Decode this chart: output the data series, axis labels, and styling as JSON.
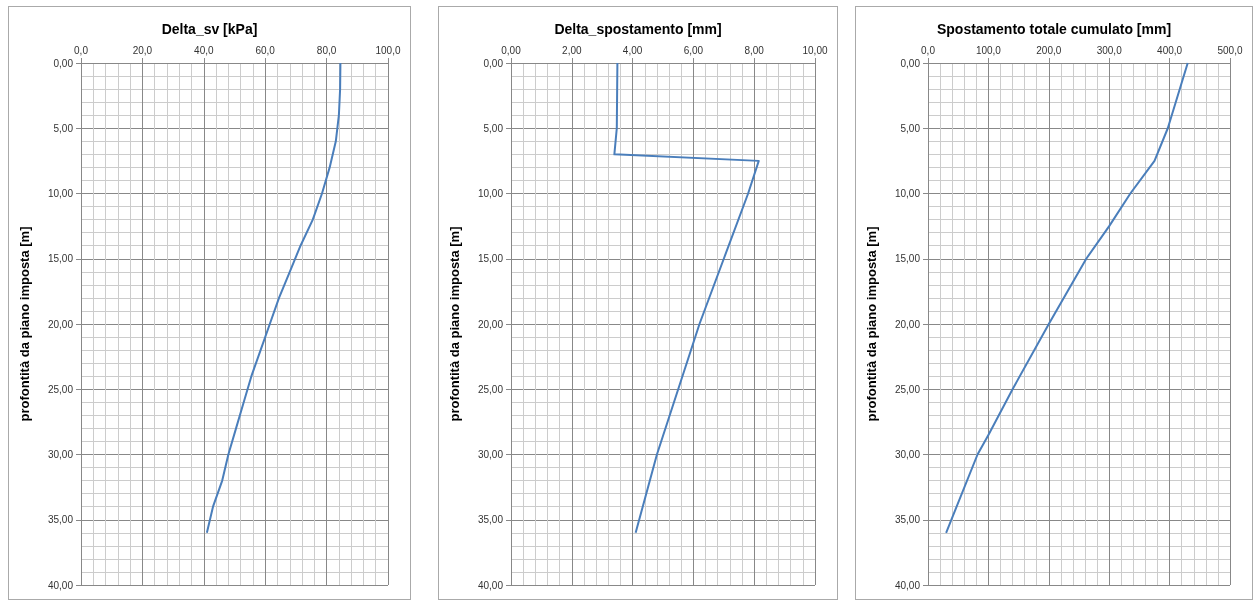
{
  "chart_data": [
    {
      "type": "line",
      "title": "Delta_sv [kPa]",
      "ylabel": "profontità da piano imposta [m]",
      "grid": true,
      "marker": "none",
      "line_style": "solid",
      "xlim": [
        0,
        100
      ],
      "xticks": [
        {
          "value": 0,
          "label": "0,0"
        },
        {
          "value": 20,
          "label": "20,0"
        },
        {
          "value": 40,
          "label": "40,0"
        },
        {
          "value": 60,
          "label": "60,0"
        },
        {
          "value": 80,
          "label": "80,0"
        },
        {
          "value": 100,
          "label": "100,0"
        }
      ],
      "ylim": [
        40,
        0
      ],
      "yticks": [
        {
          "value": 0,
          "label": "0,00"
        },
        {
          "value": 5,
          "label": "5,00"
        },
        {
          "value": 10,
          "label": "10,00"
        },
        {
          "value": 15,
          "label": "15,00"
        },
        {
          "value": 20,
          "label": "20,00"
        },
        {
          "value": 25,
          "label": "25,00"
        },
        {
          "value": 30,
          "label": "30,00"
        },
        {
          "value": 35,
          "label": "35,00"
        },
        {
          "value": 40,
          "label": "40,00"
        }
      ],
      "series": [
        {
          "color": "#4a7ebb",
          "x": [
            84.5,
            84.4,
            84,
            83,
            81,
            78.5,
            75.5,
            71.5,
            68,
            64.5,
            61.5,
            58.5,
            55.5,
            53,
            50.5,
            48,
            46,
            43,
            41
          ],
          "values": [
            0,
            2,
            4,
            6,
            8,
            10,
            12,
            14,
            16,
            18,
            20,
            22,
            24,
            26,
            28,
            30,
            32,
            34,
            36
          ]
        }
      ]
    },
    {
      "type": "line",
      "title": "Delta_spostamento [mm]",
      "ylabel": "profontità da piano imposta [m]",
      "grid": true,
      "marker": "none",
      "line_style": "solid",
      "xlim": [
        0,
        10
      ],
      "xticks": [
        {
          "value": 0,
          "label": "0,00"
        },
        {
          "value": 2,
          "label": "2,00"
        },
        {
          "value": 4,
          "label": "4,00"
        },
        {
          "value": 6,
          "label": "6,00"
        },
        {
          "value": 8,
          "label": "8,00"
        },
        {
          "value": 10,
          "label": "10,00"
        }
      ],
      "ylim": [
        40,
        0
      ],
      "yticks": [
        {
          "value": 0,
          "label": "0,00"
        },
        {
          "value": 5,
          "label": "5,00"
        },
        {
          "value": 10,
          "label": "10,00"
        },
        {
          "value": 15,
          "label": "15,00"
        },
        {
          "value": 20,
          "label": "20,00"
        },
        {
          "value": 25,
          "label": "25,00"
        },
        {
          "value": 30,
          "label": "30,00"
        },
        {
          "value": 35,
          "label": "35,00"
        },
        {
          "value": 40,
          "label": "40,00"
        }
      ],
      "series": [
        {
          "color": "#4a7ebb",
          "x": [
            3.5,
            3.48,
            3.4,
            8.15,
            7.8,
            7.0,
            6.2,
            5.5,
            4.8,
            4.1
          ],
          "values": [
            0,
            5,
            7,
            7.5,
            10,
            15,
            20,
            25,
            30,
            36
          ]
        }
      ]
    },
    {
      "type": "line",
      "title": "Spostamento totale cumulato [mm]",
      "ylabel": "profontità da piano imposta [m]",
      "grid": true,
      "marker": "none",
      "line_style": "solid",
      "xlim": [
        0,
        500
      ],
      "xticks": [
        {
          "value": 0,
          "label": "0,0"
        },
        {
          "value": 100,
          "label": "100,0"
        },
        {
          "value": 200,
          "label": "200,0"
        },
        {
          "value": 300,
          "label": "300,0"
        },
        {
          "value": 400,
          "label": "400,0"
        },
        {
          "value": 500,
          "label": "500,0"
        }
      ],
      "ylim": [
        40,
        0
      ],
      "yticks": [
        {
          "value": 0,
          "label": "0,00"
        },
        {
          "value": 5,
          "label": "5,00"
        },
        {
          "value": 10,
          "label": "10,00"
        },
        {
          "value": 15,
          "label": "15,00"
        },
        {
          "value": 20,
          "label": "20,00"
        },
        {
          "value": 25,
          "label": "25,00"
        },
        {
          "value": 30,
          "label": "30,00"
        },
        {
          "value": 35,
          "label": "35,00"
        },
        {
          "value": 40,
          "label": "40,00"
        }
      ],
      "series": [
        {
          "color": "#4a7ebb",
          "x": [
            430,
            397,
            375,
            335,
            300,
            262,
            200,
            140,
            100,
            82,
            30
          ],
          "values": [
            0,
            5,
            7.5,
            10,
            12.5,
            15,
            20,
            25,
            28.5,
            30,
            36
          ]
        }
      ]
    }
  ]
}
